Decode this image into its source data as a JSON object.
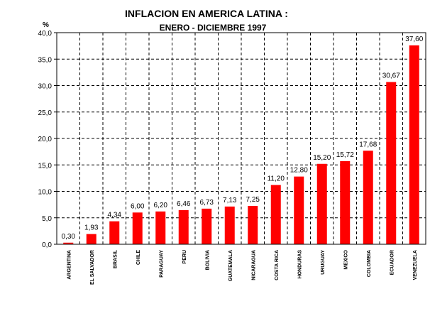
{
  "chart_data": {
    "type": "bar",
    "title": "INFLACION EN AMERICA LATINA :",
    "subtitle": "ENERO - DICIEMBRE 1997",
    "ylabel": "%",
    "xlabel": "",
    "ylim": [
      0,
      40
    ],
    "yticks": [
      "0,0",
      "5,0",
      "10,0",
      "15,0",
      "20,0",
      "25,0",
      "30,0",
      "35,0",
      "40,0"
    ],
    "categories": [
      "ARGENTINA",
      "EL SALVADOR",
      "BRASIL",
      "CHILE",
      "PARAGUAY",
      "PERU",
      "BOLIVIA",
      "GUATEMALA",
      "NICARAGUA",
      "COSTA RICA",
      "HONDURAS",
      "URUGUAY",
      "MEXICO",
      "COLOMBIA",
      "ECUADOR",
      "VENEZUELA"
    ],
    "values": [
      0.3,
      1.93,
      4.34,
      6.0,
      6.2,
      6.46,
      6.73,
      7.13,
      7.25,
      11.2,
      12.8,
      15.2,
      15.72,
      17.68,
      30.67,
      37.6
    ],
    "value_labels": [
      "0,30",
      "1,93",
      "4,34",
      "6,00",
      "6,20",
      "6,46",
      "6,73",
      "7,13",
      "7,25",
      "11,20",
      "12,80",
      "15,20",
      "15,72",
      "17,68",
      "30,67",
      "37,60"
    ],
    "bar_color": "#ff0000",
    "grid": true,
    "grid_style": "dashed"
  }
}
